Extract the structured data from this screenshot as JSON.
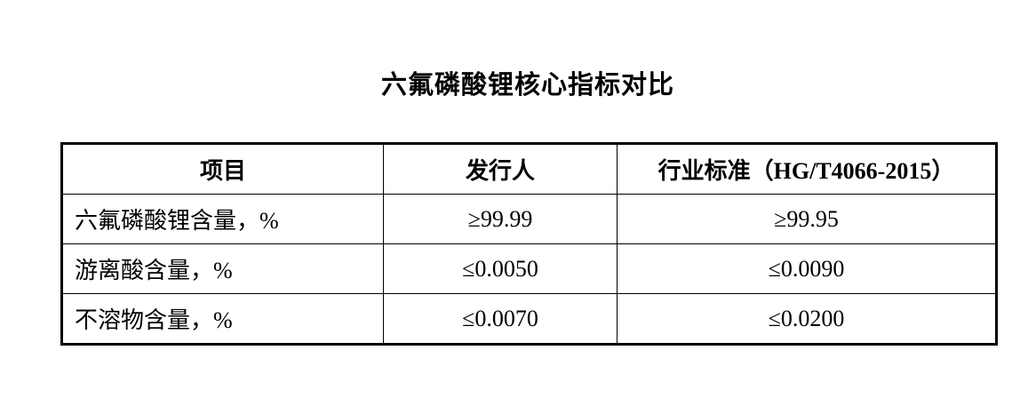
{
  "document": {
    "title": "六氟磷酸锂核心指标对比"
  },
  "table": {
    "headers": [
      "项目",
      "发行人",
      "行业标准（HG/T4066-2015）"
    ],
    "rows": [
      {
        "item": "六氟磷酸锂含量，%",
        "issuer": "≥99.99",
        "standard": "≥99.95"
      },
      {
        "item": "游离酸含量，%",
        "issuer": "≤0.0050",
        "standard": "≤0.0090"
      },
      {
        "item": "不溶物含量，%",
        "issuer": "≤0.0070",
        "standard": "≤0.0200"
      }
    ]
  },
  "colors": {
    "text": "#000000",
    "background": "#ffffff",
    "table_border": "#000000"
  }
}
